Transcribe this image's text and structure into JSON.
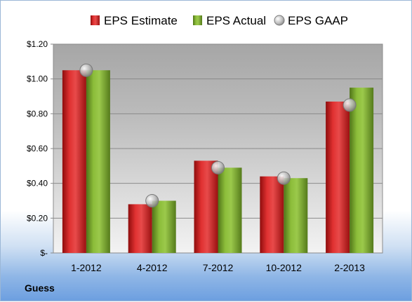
{
  "company": "Guess",
  "chart_data": {
    "type": "bar",
    "categories": [
      "1-2012",
      "4-2012",
      "7-2012",
      "10-2012",
      "2-2013"
    ],
    "series": [
      {
        "name": "EPS Estimate",
        "kind": "bar",
        "color": "#d42020",
        "values": [
          1.05,
          0.28,
          0.53,
          0.44,
          0.87
        ]
      },
      {
        "name": "EPS Actual",
        "kind": "bar",
        "color": "#7aa52e",
        "values": [
          1.05,
          0.3,
          0.49,
          0.43,
          0.95
        ]
      },
      {
        "name": "EPS GAAP",
        "kind": "marker",
        "color": "#b8b8b8",
        "values": [
          1.05,
          0.3,
          0.49,
          0.43,
          0.85
        ]
      }
    ],
    "y_ticks": [
      {
        "value": 0,
        "label": "$-"
      },
      {
        "value": 0.2,
        "label": "$0.20"
      },
      {
        "value": 0.4,
        "label": "$0.40"
      },
      {
        "value": 0.6,
        "label": "$0.60"
      },
      {
        "value": 0.8,
        "label": "$0.80"
      },
      {
        "value": 1.0,
        "label": "$1.00"
      },
      {
        "value": 1.2,
        "label": "$1.20"
      }
    ],
    "ylim": [
      0,
      1.2
    ],
    "grid": true,
    "legend_position": "top"
  }
}
